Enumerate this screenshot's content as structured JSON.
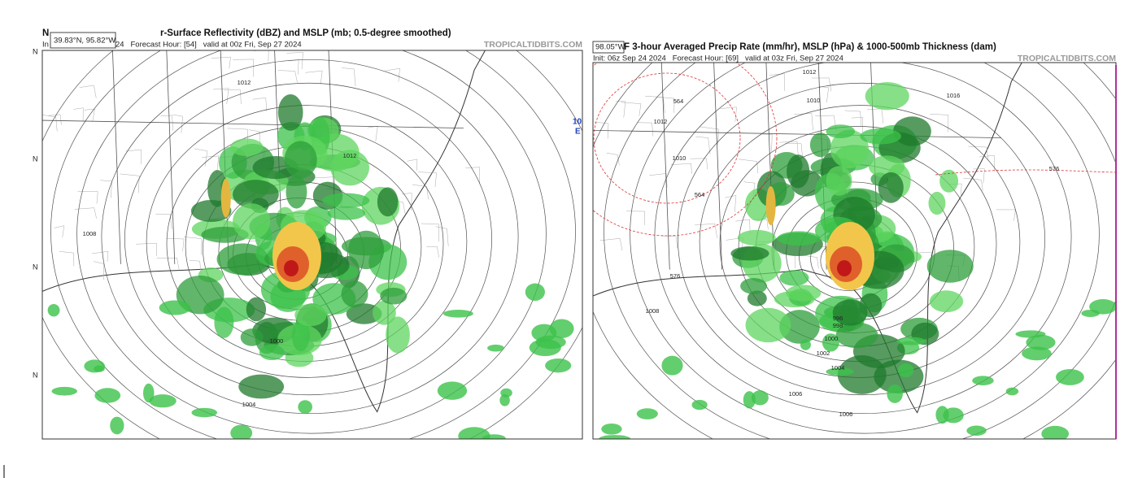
{
  "panels": [
    {
      "coord_tooltip": "39.83°N, 95.82°W",
      "title_prefix": "N",
      "title": "r-Surface Reflectivity (dBZ) and MSLP (mb; 0.5-degree smoothed)",
      "subtitle_prefix": "In",
      "subtitle": "24   Forecast Hour: [54]   valid at 00z Fri, Sep 27 2024",
      "watermark": "TROPICALTIDBITS.COM",
      "lat_labels": [
        "N",
        "N",
        "N",
        "N"
      ],
      "contour_labels": [
        "1012",
        "1012",
        "1008",
        "1004",
        "1000"
      ]
    },
    {
      "coord_tooltip": "98.05°W",
      "title": "F 3-hour Averaged Precip Rate (mm/hr), MSLP (hPa) & 1000-500mb Thickness (dam)",
      "subtitle": "Init: 06z Sep 24 2024   Forecast Hour: [69]   valid at 03z Fri, Sep 27 2024",
      "watermark": "TROPICALTIDBITS.COM",
      "contour_labels": [
        "1012",
        "1016",
        "1010",
        "564",
        "1012",
        "1010",
        "564",
        "576",
        "576",
        "1008",
        "996",
        "998",
        "1000",
        "1002",
        "1004",
        "1006",
        "1006"
      ]
    }
  ],
  "side_label": "10"
}
